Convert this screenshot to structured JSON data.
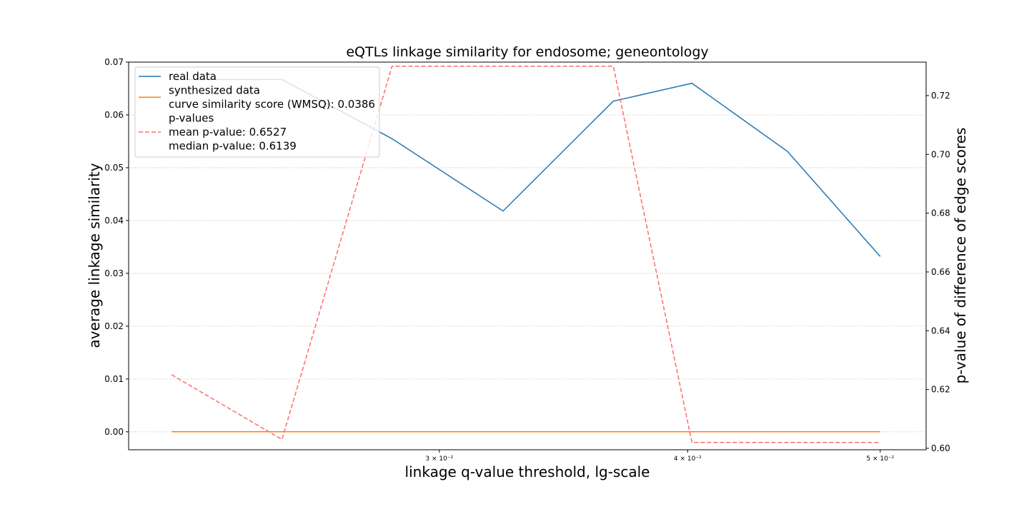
{
  "chart_data": {
    "type": "line",
    "title": "eQTLs linkage similarity for endosome; geneontology",
    "xlabel": "linkage q-value threshold, lg-scale",
    "ylabel": "average linkage similarity",
    "ylabel_right": "p-value of difference of edge scores",
    "x_scale": "log",
    "x": [
      0.022,
      0.025,
      0.0284,
      0.0323,
      0.0367,
      0.0402,
      0.0449,
      0.05
    ],
    "xlim": [
      0.02093,
      0.05273
    ],
    "ylim": [
      -0.0034,
      0.07
    ],
    "ylim_right": [
      0.5995,
      0.7314
    ],
    "x_ticks": [
      {
        "value": 0.03,
        "label": "3 × 10⁻²"
      },
      {
        "value": 0.04,
        "label": "4 × 10⁻²"
      },
      {
        "value": 0.05,
        "label": "5 × 10⁻²"
      }
    ],
    "y_ticks": [
      {
        "value": 0.0,
        "label": "0.00"
      },
      {
        "value": 0.01,
        "label": "0.01"
      },
      {
        "value": 0.02,
        "label": "0.02"
      },
      {
        "value": 0.03,
        "label": "0.03"
      },
      {
        "value": 0.04,
        "label": "0.04"
      },
      {
        "value": 0.05,
        "label": "0.05"
      },
      {
        "value": 0.06,
        "label": "0.06"
      },
      {
        "value": 0.07,
        "label": "0.07"
      }
    ],
    "y_ticks_right": [
      {
        "value": 0.6,
        "label": "0.60"
      },
      {
        "value": 0.62,
        "label": "0.62"
      },
      {
        "value": 0.64,
        "label": "0.64"
      },
      {
        "value": 0.66,
        "label": "0.66"
      },
      {
        "value": 0.68,
        "label": "0.68"
      },
      {
        "value": 0.7,
        "label": "0.70"
      },
      {
        "value": 0.72,
        "label": "0.72"
      }
    ],
    "grid": "horizontal dotted",
    "legend_position": "upper-left",
    "series": [
      {
        "name": "real data",
        "axis": "left",
        "style": "solid",
        "color": "#1f77b4",
        "values": [
          0.0667,
          0.0667,
          0.0555,
          0.0418,
          0.0626,
          0.066,
          0.0531,
          0.0332
        ]
      },
      {
        "name": "synthesized data",
        "axis": "left",
        "style": "solid",
        "color": "#ff7f0e",
        "values": [
          0.0,
          0.0,
          0.0,
          0.0,
          0.0,
          0.0,
          0.0,
          0.0
        ]
      },
      {
        "name": "p-values",
        "axis": "right",
        "style": "dashed",
        "color": "#ff6b6b",
        "values": [
          0.625,
          0.603,
          0.73,
          0.73,
          0.73,
          0.602,
          0.602,
          0.602
        ]
      }
    ],
    "legend_entries": [
      {
        "color": "#1f77b4",
        "style": "solid",
        "lines": [
          "real data"
        ]
      },
      {
        "color": "#ff7f0e",
        "style": "solid",
        "lines": [
          "synthesized data",
          "curve similarity score (WMSQ): 0.0386"
        ]
      },
      {
        "color": "#ff6b6b",
        "style": "dashed",
        "lines": [
          "p-values",
          "mean p-value: 0.6527",
          "median p-value: 0.6139"
        ]
      }
    ]
  }
}
